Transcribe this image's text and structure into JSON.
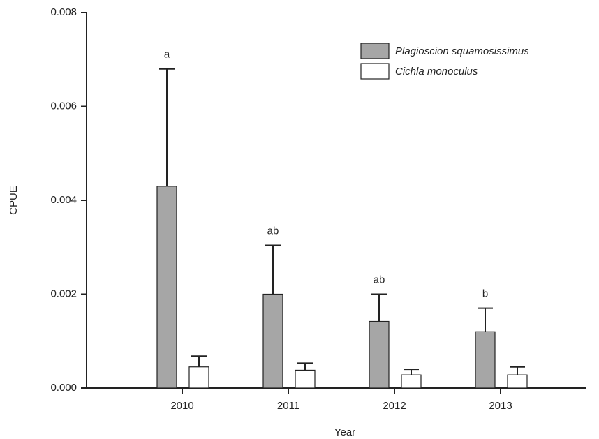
{
  "chart_data": {
    "type": "bar",
    "x_label": "Year",
    "y_label": "CPUE",
    "categories": [
      "2010",
      "2011",
      "2012",
      "2013"
    ],
    "series": [
      {
        "name": "Plagioscion squamosissimus",
        "color": "#a6a6a6",
        "values": [
          0.0043,
          0.002,
          0.00142,
          0.0012
        ],
        "errors": [
          0.0025,
          0.00104,
          0.00058,
          0.0005
        ],
        "annotations": [
          "a",
          "ab",
          "ab",
          "b"
        ]
      },
      {
        "name": "Cichla monoculus",
        "color": "#ffffff",
        "values": [
          0.00045,
          0.00038,
          0.00028,
          0.00028
        ],
        "errors": [
          0.00023,
          0.00015,
          0.00012,
          0.00017
        ]
      }
    ],
    "ylim": [
      0,
      0.008
    ],
    "yticks": [
      {
        "value": 0,
        "label": "0.000"
      },
      {
        "value": 0.002,
        "label": "0.002"
      },
      {
        "value": 0.004,
        "label": "0.004"
      },
      {
        "value": 0.006,
        "label": "0.006"
      },
      {
        "value": 0.008,
        "label": "0.008"
      }
    ],
    "legend": "upper right"
  }
}
